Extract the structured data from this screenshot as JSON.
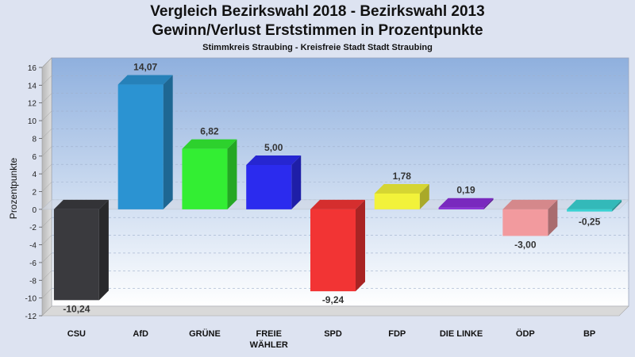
{
  "title_line1": "Vergleich Bezirkswahl 2018 - Bezirkswahl 2013",
  "title_line2": "Gewinn/Verlust Erststimmen in Prozentpunkte",
  "subtitle": "Stimmkreis Straubing - Kreisfreie Stadt Stadt Straubing",
  "chart_data": {
    "type": "bar",
    "title": "Vergleich Bezirkswahl 2018 - Bezirkswahl 2013 / Gewinn/Verlust Erststimmen in Prozentpunkte",
    "subtitle": "Stimmkreis Straubing - Kreisfreie Stadt Stadt Straubing",
    "ylabel": "Prozentpunkte",
    "xlabel": "",
    "ylim": [
      -12,
      16
    ],
    "ytick_step": 2,
    "grid": true,
    "legend": "none",
    "categories": [
      "CSU",
      "AfD",
      "GRÜNE",
      "FREIE WÄHLER",
      "SPD",
      "FDP",
      "DIE LINKE",
      "ÖDP",
      "BP"
    ],
    "category_label_lines": [
      [
        "CSU"
      ],
      [
        "AfD"
      ],
      [
        "GRÜNE"
      ],
      [
        "FREIE",
        "WÄHLER"
      ],
      [
        "SPD"
      ],
      [
        "FDP"
      ],
      [
        "DIE LINKE"
      ],
      [
        "ÖDP"
      ],
      [
        "BP"
      ]
    ],
    "values": [
      -10.24,
      14.07,
      6.82,
      5.0,
      -9.24,
      1.78,
      0.19,
      -3.0,
      -0.25
    ],
    "value_labels": [
      "-10,24",
      "14,07",
      "6,82",
      "5,00",
      "-9,24",
      "1,78",
      "0,19",
      "-3,00",
      "-0,25"
    ],
    "colors": [
      "#3a3a3e",
      "#2b93d2",
      "#33ee33",
      "#2b2bee",
      "#f23434",
      "#f2f23a",
      "#8a2fd8",
      "#f29a9e",
      "#3ad2d2"
    ]
  }
}
